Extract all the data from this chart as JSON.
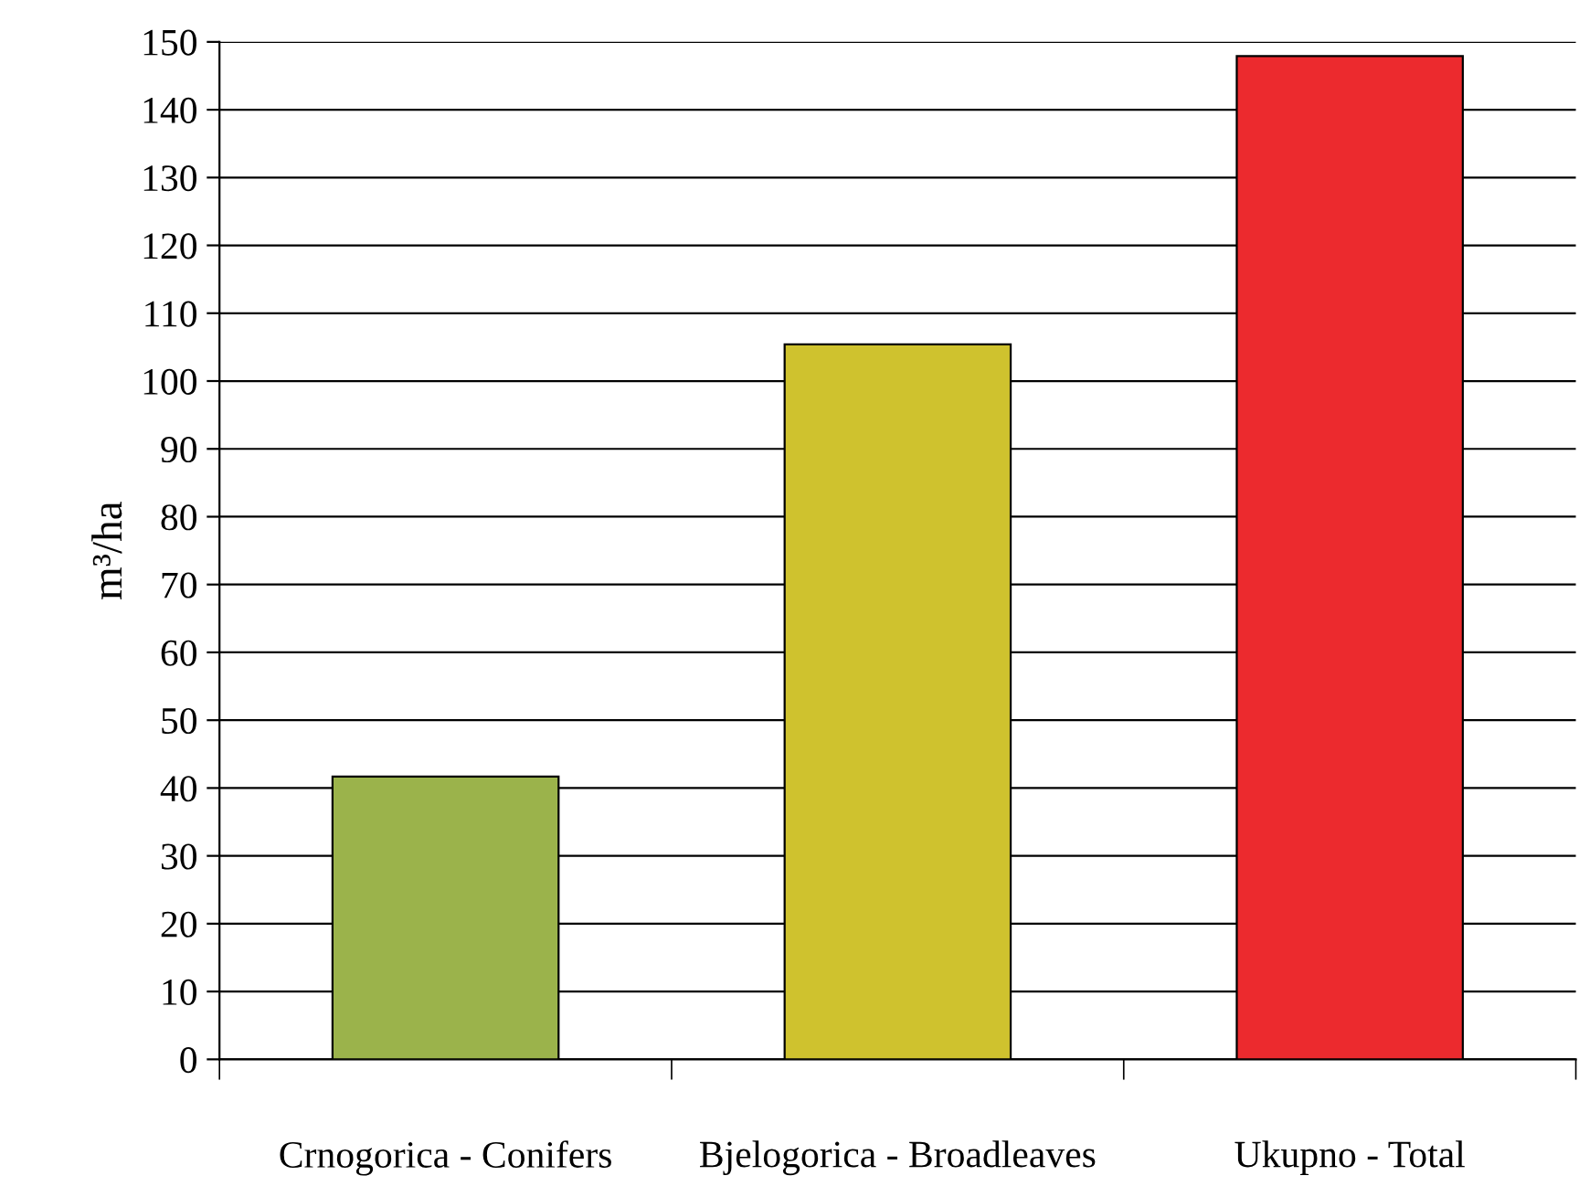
{
  "chart_data": {
    "type": "bar",
    "ylabel": "m³/ha",
    "categories": [
      "Crnogorica - Conifers",
      "Bjelogorica - Broadleaves",
      "Ukupno - Total"
    ],
    "values": [
      41.7,
      105.4,
      147.9
    ],
    "colors": [
      "#9bb34b",
      "#cfc22e",
      "#ec2a2e"
    ],
    "ylim": [
      0,
      150
    ],
    "yticks": [
      0,
      10,
      20,
      30,
      40,
      50,
      60,
      70,
      80,
      90,
      100,
      110,
      120,
      130,
      140,
      150
    ],
    "grid": "y",
    "legend": false
  }
}
